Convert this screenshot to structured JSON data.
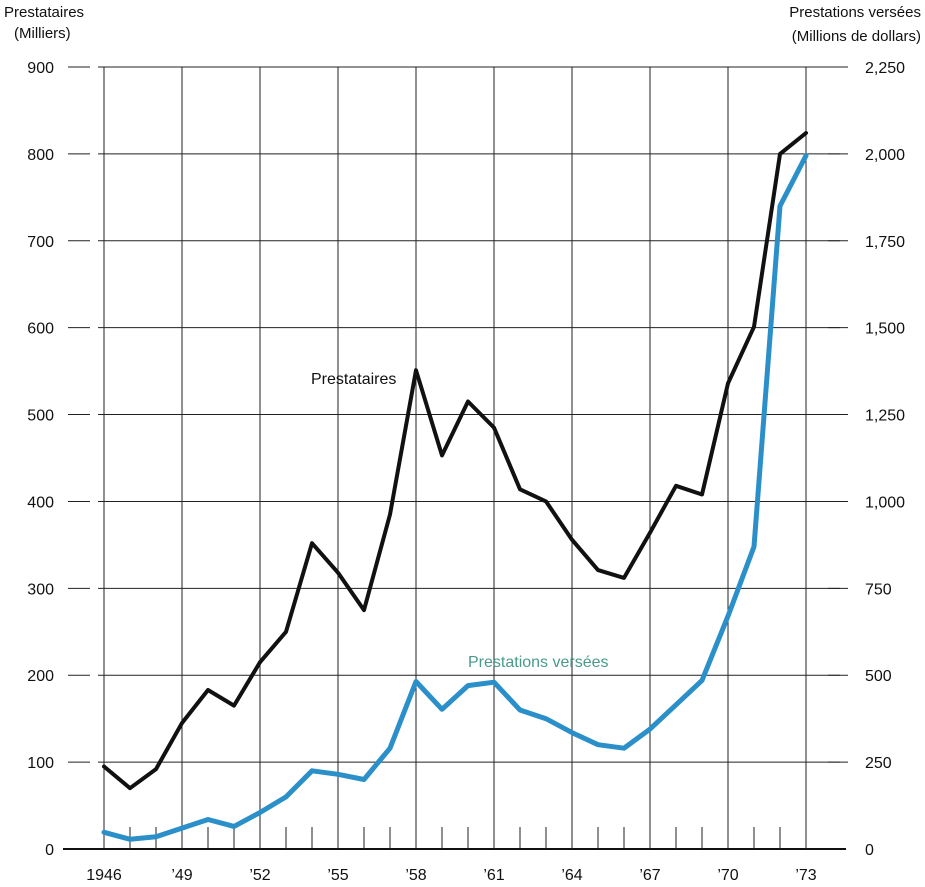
{
  "chart_data": {
    "type": "line",
    "left_axis": {
      "title_line1": "Prestataires",
      "title_line2": "(Milliers)",
      "ticks": [
        0,
        100,
        200,
        300,
        400,
        500,
        600,
        700,
        800,
        900
      ],
      "tick_labels": [
        "0",
        "100",
        "200",
        "300",
        "400",
        "500",
        "600",
        "700",
        "800",
        "900"
      ],
      "range": [
        0,
        900
      ]
    },
    "right_axis": {
      "title_line1": "Prestations versées",
      "title_line2": "(Millions de dollars)",
      "ticks": [
        0,
        250,
        500,
        750,
        1000,
        1250,
        1500,
        1750,
        2000,
        2250
      ],
      "tick_labels": [
        "0",
        "250",
        "500",
        "750",
        "1,000",
        "1,250",
        "1,500",
        "1,750",
        "2,000",
        "2,250"
      ],
      "range": [
        0,
        2250
      ]
    },
    "x_axis": {
      "range": [
        1946,
        1974
      ],
      "ticks": [
        1946,
        1949,
        1952,
        1955,
        1958,
        1961,
        1964,
        1967,
        1970,
        1973
      ],
      "tick_labels": [
        "1946",
        "’49",
        "’52",
        "’55",
        "’58",
        "’61",
        "’64",
        "’67",
        "’70",
        "’73"
      ]
    },
    "grid": true,
    "series": [
      {
        "name": "Prestataires",
        "axis": "left",
        "color": "#111111",
        "x": [
          1946,
          1947,
          1948,
          1949,
          1950,
          1951,
          1952,
          1953,
          1954,
          1955,
          1956,
          1957,
          1958,
          1959,
          1960,
          1961,
          1962,
          1963,
          1964,
          1965,
          1966,
          1967,
          1968,
          1969,
          1970,
          1971,
          1972,
          1973
        ],
        "values": [
          95,
          70,
          92,
          145,
          183,
          165,
          215,
          250,
          352,
          318,
          275,
          385,
          551,
          453,
          515,
          485,
          414,
          400,
          356,
          321,
          312,
          364,
          418,
          408,
          536,
          601,
          800,
          824
        ]
      },
      {
        "name": "Prestations versées",
        "axis": "right",
        "color": "#2b8fc9",
        "x": [
          1946,
          1947,
          1948,
          1949,
          1950,
          1951,
          1952,
          1953,
          1954,
          1955,
          1956,
          1957,
          1958,
          1959,
          1960,
          1961,
          1962,
          1963,
          1964,
          1965,
          1966,
          1967,
          1968,
          1969,
          1970,
          1971,
          1972,
          1973
        ],
        "values": [
          48,
          28,
          35,
          60,
          85,
          65,
          105,
          150,
          225,
          215,
          200,
          290,
          482,
          402,
          470,
          480,
          400,
          375,
          335,
          300,
          290,
          345,
          415,
          485,
          670,
          870,
          1850,
          1995
        ]
      }
    ]
  }
}
